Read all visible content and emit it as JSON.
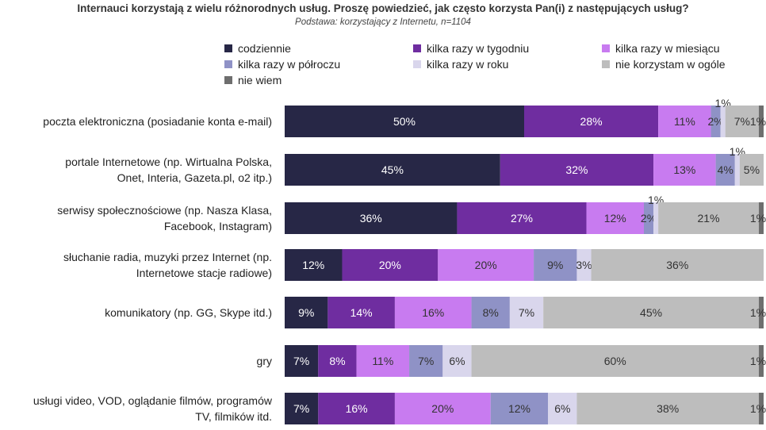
{
  "chart_data": {
    "type": "bar",
    "orientation": "horizontal",
    "stacked": true,
    "percent_stacked": true,
    "title": "Internauci korzystają z wielu różnorodnych usług. Proszę powiedzieć, jak często korzysta Pan(i) z następujących usług?",
    "subtitle": "Podstawa: korzystający z Internetu, n=1104",
    "xlabel": "",
    "ylabel": "",
    "xlim": [
      0,
      100
    ],
    "grid": false,
    "legend_position": "top",
    "categories": [
      [
        "poczta elektroniczna (posiadanie konta e-mail)"
      ],
      [
        "portale Internetowe (np. Wirtualna Polska,",
        "Onet, Interia, Gazeta.pl, o2 itp.)"
      ],
      [
        "serwisy społecznościowe (np. Nasza Klasa,",
        "Facebook, Instagram)"
      ],
      [
        "słuchanie radia, muzyki przez Internet (np.",
        "Internetowe stacje radiowe)"
      ],
      [
        "komunikatory (np. GG, Skype itd.)"
      ],
      [
        "gry"
      ],
      [
        "usługi video, VOD, oglądanie filmów, programów",
        "TV, filmików itd."
      ]
    ],
    "series": [
      {
        "name": "codziennie",
        "color": "#272746",
        "label_color": "#ffffff",
        "values": [
          50,
          45,
          36,
          12,
          9,
          7,
          7
        ]
      },
      {
        "name": "kilka razy w tygodniu",
        "color": "#6f2da0",
        "label_color": "#ffffff",
        "values": [
          28,
          32,
          27,
          20,
          14,
          8,
          16
        ]
      },
      {
        "name": "kilka razy w miesiącu",
        "color": "#c87bf0",
        "label_color": "#333333",
        "values": [
          11,
          13,
          12,
          20,
          16,
          11,
          20
        ]
      },
      {
        "name": "kilka razy w półroczu",
        "color": "#8f92c6",
        "label_color": "#333333",
        "values": [
          2,
          4,
          2,
          9,
          8,
          7,
          12
        ]
      },
      {
        "name": "kilka razy w roku",
        "color": "#d9d6ec",
        "label_color": "#333333",
        "values": [
          1,
          1,
          1,
          3,
          7,
          6,
          6
        ]
      },
      {
        "name": "nie korzystam w ogóle",
        "color": "#bdbdbd",
        "label_color": "#333333",
        "values": [
          7,
          5,
          21,
          36,
          45,
          60,
          38
        ]
      },
      {
        "name": "nie wiem",
        "color": "#6e6e6e",
        "label_color": "#333333",
        "values": [
          1,
          0,
          1,
          0,
          1,
          1,
          1
        ]
      }
    ]
  }
}
